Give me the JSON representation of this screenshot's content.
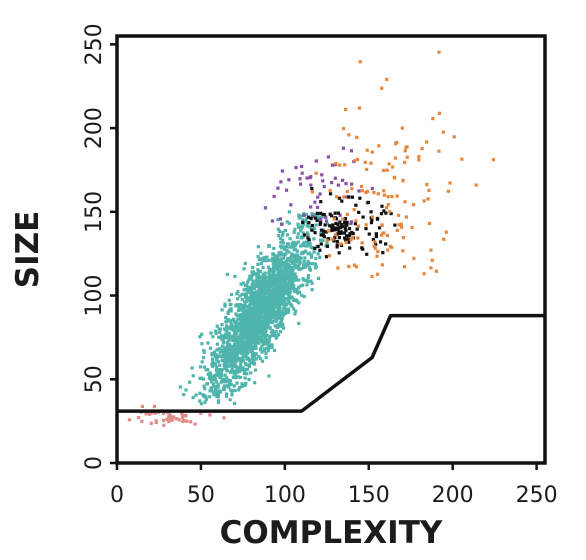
{
  "chart_data": {
    "type": "scatter",
    "title": "",
    "xlabel": "COMPLEXITY",
    "ylabel": "SIZE",
    "xlim": [
      0,
      255
    ],
    "ylim": [
      0,
      255
    ],
    "xticks": [
      0,
      50,
      100,
      150,
      200,
      250
    ],
    "yticks": [
      0,
      50,
      100,
      150,
      200,
      250
    ],
    "grid": false,
    "legend": "none",
    "gate_polyline": [
      [
        0,
        31
      ],
      [
        110,
        31
      ],
      [
        152,
        63
      ],
      [
        163,
        88
      ],
      [
        255,
        88
      ]
    ],
    "series": [
      {
        "color": "#4fb5ac",
        "center": [
          85,
          90
        ],
        "spread": [
          14,
          22
        ],
        "count": 2200,
        "xrange": [
          20,
          130
        ],
        "yrange": [
          35,
          150
        ]
      },
      {
        "color": "#e08a8a",
        "center": [
          25,
          27
        ],
        "spread": [
          15,
          3
        ],
        "count": 45,
        "xrange": [
          5,
          65
        ],
        "yrange": [
          20,
          34
        ]
      },
      {
        "color": "#8a4fa6",
        "center": [
          120,
          160
        ],
        "spread": [
          15,
          15
        ],
        "count": 60,
        "xrange": [
          80,
          170
        ],
        "yrange": [
          140,
          230
        ]
      },
      {
        "color": "#111111",
        "center": [
          135,
          140
        ],
        "spread": [
          12,
          8
        ],
        "count": 140,
        "xrange": [
          110,
          175
        ],
        "yrange": [
          120,
          175
        ]
      },
      {
        "color": "#e8873a",
        "center": [
          155,
          150
        ],
        "spread": [
          25,
          35
        ],
        "count": 160,
        "xrange": [
          115,
          250
        ],
        "yrange": [
          110,
          255
        ]
      }
    ]
  }
}
